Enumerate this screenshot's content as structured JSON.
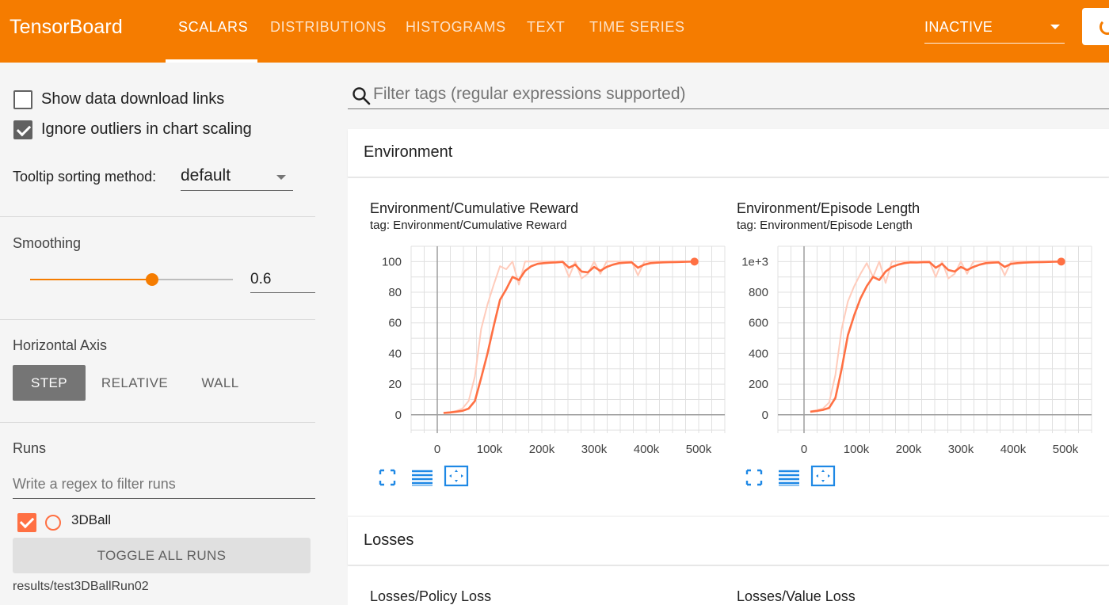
{
  "header": {
    "brand": "TensorBoard",
    "tabs": [
      {
        "label": "SCALARS",
        "active": true
      },
      {
        "label": "DISTRIBUTIONS",
        "active": false
      },
      {
        "label": "HISTOGRAMS",
        "active": false
      },
      {
        "label": "TEXT",
        "active": false
      },
      {
        "label": "TIME SERIES",
        "active": false
      }
    ],
    "run_status": "INACTIVE",
    "reload_icon": "reload-icon",
    "accent_color": "#f57c00"
  },
  "sidebar": {
    "show_download_links": {
      "label": "Show data download links",
      "checked": false
    },
    "ignore_outliers": {
      "label": "Ignore outliers in chart scaling",
      "checked": true
    },
    "tooltip_sorting": {
      "label": "Tooltip sorting method:",
      "value": "default"
    },
    "smoothing": {
      "label": "Smoothing",
      "value": "0.6",
      "level": 0.6
    },
    "horizontal_axis": {
      "label": "Horizontal Axis",
      "options": [
        {
          "label": "STEP",
          "active": true
        },
        {
          "label": "RELATIVE",
          "active": false
        },
        {
          "label": "WALL",
          "active": false
        }
      ]
    },
    "runs": {
      "label": "Runs",
      "filter_placeholder": "Write a regex to filter runs",
      "items": [
        {
          "name": "3DBall",
          "checked": true,
          "color": "#ff7043"
        }
      ],
      "toggle_all_label": "TOGGLE ALL RUNS",
      "data_location": "results/test3DBallRun02"
    }
  },
  "main": {
    "search_placeholder": "Filter tags (regular expressions supported)",
    "search_icon": "search-icon",
    "categories": [
      {
        "title": "Environment"
      },
      {
        "title": "Losses"
      }
    ],
    "chart_buttons": [
      "fullscreen-icon",
      "toggle-y-log-icon",
      "fit-domain-icon"
    ],
    "charts": [
      {
        "title": "Environment/Cumulative Reward",
        "tag": "tag: Environment/Cumulative Reward"
      },
      {
        "title": "Environment/Episode Length",
        "tag": "tag: Environment/Episode Length"
      },
      {
        "title": "Losses/Policy Loss"
      },
      {
        "title": "Losses/Value Loss"
      }
    ]
  },
  "chart_data": [
    {
      "type": "line",
      "title": "Environment/Cumulative Reward",
      "xlim": [
        -50000,
        550000
      ],
      "ylim": [
        -12,
        110
      ],
      "x_ticks": [
        0,
        100000,
        200000,
        300000,
        400000,
        500000
      ],
      "x_tick_labels": [
        "0",
        "100k",
        "200k",
        "300k",
        "400k",
        "500k"
      ],
      "y_ticks": [
        0,
        20,
        40,
        60,
        80,
        100
      ],
      "y_tick_labels": [
        "0",
        "20",
        "40",
        "60",
        "80",
        "100"
      ],
      "grid": true,
      "series": [
        {
          "name": "3DBall",
          "color": "#ff7043",
          "smoothed": true,
          "x": [
            12000,
            24000,
            36000,
            48000,
            60000,
            72000,
            84000,
            96000,
            108000,
            120000,
            132000,
            144000,
            156000,
            168000,
            180000,
            192000,
            204000,
            216000,
            228000,
            240000,
            252000,
            264000,
            276000,
            288000,
            300000,
            312000,
            324000,
            336000,
            348000,
            360000,
            372000,
            384000,
            396000,
            408000,
            420000,
            432000,
            444000,
            456000,
            468000,
            480000,
            492000
          ],
          "y": [
            1.2,
            1.5,
            2.0,
            2.6,
            4.0,
            9.0,
            24.0,
            40.0,
            58.0,
            75.0,
            82.0,
            90.0,
            88.0,
            94.0,
            97.0,
            98.5,
            99.0,
            99.3,
            99.5,
            99.8,
            96.0,
            98.0,
            93.5,
            93.0,
            96.5,
            94.0,
            96.5,
            98.0,
            99.0,
            99.3,
            99.5,
            96.0,
            98.0,
            99.0,
            99.3,
            99.5,
            99.6,
            99.7,
            99.8,
            99.9,
            100.0
          ]
        },
        {
          "name": "3DBall (raw)",
          "color": "#ffccbc",
          "smoothed": false,
          "x": [
            12000,
            24000,
            36000,
            48000,
            60000,
            72000,
            84000,
            96000,
            108000,
            120000,
            132000,
            144000,
            156000,
            168000,
            180000,
            192000,
            204000,
            216000,
            228000,
            240000,
            252000,
            264000,
            276000,
            288000,
            300000,
            312000,
            324000,
            336000,
            348000,
            360000,
            372000,
            384000,
            396000,
            408000,
            420000,
            432000,
            444000,
            456000,
            468000,
            480000,
            492000
          ],
          "y": [
            1.3,
            1.8,
            2.5,
            4.0,
            9.0,
            25.0,
            56.0,
            72.0,
            85.0,
            97.0,
            95.0,
            100.0,
            85.0,
            100.0,
            100.0,
            100.0,
            100.0,
            100.0,
            100.0,
            100.0,
            90.0,
            100.0,
            89.0,
            92.0,
            100.0,
            92.0,
            100.0,
            100.0,
            100.0,
            100.0,
            100.0,
            91.0,
            100.0,
            100.0,
            100.0,
            100.0,
            100.0,
            100.0,
            100.0,
            100.0,
            100.0
          ]
        }
      ]
    },
    {
      "type": "line",
      "title": "Environment/Episode Length",
      "xlim": [
        -50000,
        550000
      ],
      "ylim": [
        -120,
        1100
      ],
      "x_ticks": [
        0,
        100000,
        200000,
        300000,
        400000,
        500000
      ],
      "x_tick_labels": [
        "0",
        "100k",
        "200k",
        "300k",
        "400k",
        "500k"
      ],
      "y_ticks": [
        0,
        200,
        400,
        600,
        800,
        1000
      ],
      "y_tick_labels": [
        "0",
        "200",
        "400",
        "600",
        "800",
        "1e+3"
      ],
      "grid": true,
      "series": [
        {
          "name": "3DBall",
          "color": "#ff7043",
          "smoothed": true,
          "x": [
            12000,
            24000,
            36000,
            48000,
            60000,
            72000,
            84000,
            96000,
            108000,
            120000,
            132000,
            144000,
            156000,
            168000,
            180000,
            192000,
            204000,
            216000,
            228000,
            240000,
            252000,
            264000,
            276000,
            288000,
            300000,
            312000,
            324000,
            336000,
            348000,
            360000,
            372000,
            384000,
            396000,
            408000,
            420000,
            432000,
            444000,
            456000,
            468000,
            480000,
            492000
          ],
          "y": [
            20,
            25,
            32,
            45,
            110,
            300,
            520,
            650,
            760,
            840,
            900,
            880,
            935,
            965,
            980,
            990,
            995,
            994,
            996,
            997,
            960,
            985,
            945,
            935,
            965,
            945,
            965,
            980,
            990,
            993,
            995,
            965,
            985,
            990,
            993,
            995,
            996,
            997,
            998,
            999,
            1000
          ]
        },
        {
          "name": "3DBall (raw)",
          "color": "#ffccbc",
          "smoothed": false,
          "x": [
            12000,
            24000,
            36000,
            48000,
            60000,
            72000,
            84000,
            96000,
            108000,
            120000,
            132000,
            144000,
            156000,
            168000,
            180000,
            192000,
            204000,
            216000,
            228000,
            240000,
            252000,
            264000,
            276000,
            288000,
            300000,
            312000,
            324000,
            336000,
            348000,
            360000,
            372000,
            384000,
            396000,
            408000,
            420000,
            432000,
            444000,
            456000,
            468000,
            480000,
            492000
          ],
          "y": [
            22,
            30,
            40,
            80,
            260,
            560,
            740,
            840,
            920,
            990,
            900,
            1000,
            860,
            1000,
            1000,
            1000,
            1000,
            1000,
            1000,
            1000,
            900,
            1000,
            890,
            920,
            1000,
            920,
            1000,
            1000,
            1000,
            1000,
            1000,
            910,
            1000,
            1000,
            1000,
            1000,
            1000,
            1000,
            1000,
            1000,
            1000
          ]
        }
      ]
    }
  ]
}
